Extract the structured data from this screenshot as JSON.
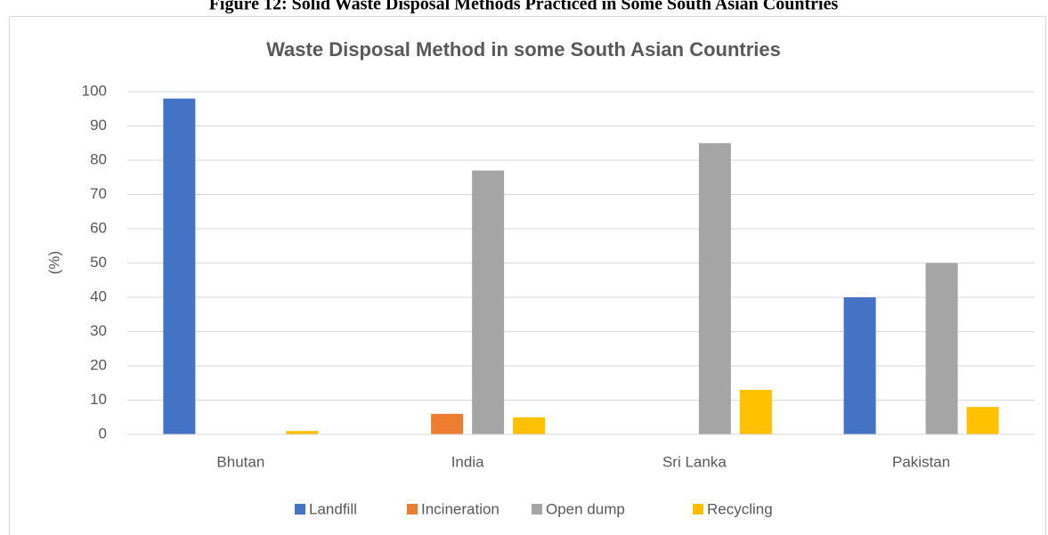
{
  "caption": "Figure 12: Solid Waste Disposal Methods Practiced in Some South Asian Countries",
  "chart_data": {
    "type": "bar",
    "title": "Waste Disposal Method in some South Asian Countries",
    "y_label": "(%)",
    "categories": [
      "Bhutan",
      "India",
      "Sri Lanka",
      "Pakistan"
    ],
    "series": [
      {
        "name": "Landfill",
        "color": "#4472c4",
        "values": [
          98,
          0,
          0,
          40
        ]
      },
      {
        "name": "Incineration",
        "color": "#ed7d31",
        "values": [
          0,
          6,
          0,
          0
        ]
      },
      {
        "name": "Open dump",
        "color": "#a5a5a5",
        "values": [
          0,
          77,
          85,
          50
        ]
      },
      {
        "name": "Recycling",
        "color": "#ffc000",
        "values": [
          1,
          5,
          13,
          8
        ]
      }
    ],
    "ylim": [
      0,
      100
    ],
    "yticks": [
      0,
      10,
      20,
      30,
      40,
      50,
      60,
      70,
      80,
      90,
      100
    ],
    "grid": true,
    "legend": "bottom"
  }
}
